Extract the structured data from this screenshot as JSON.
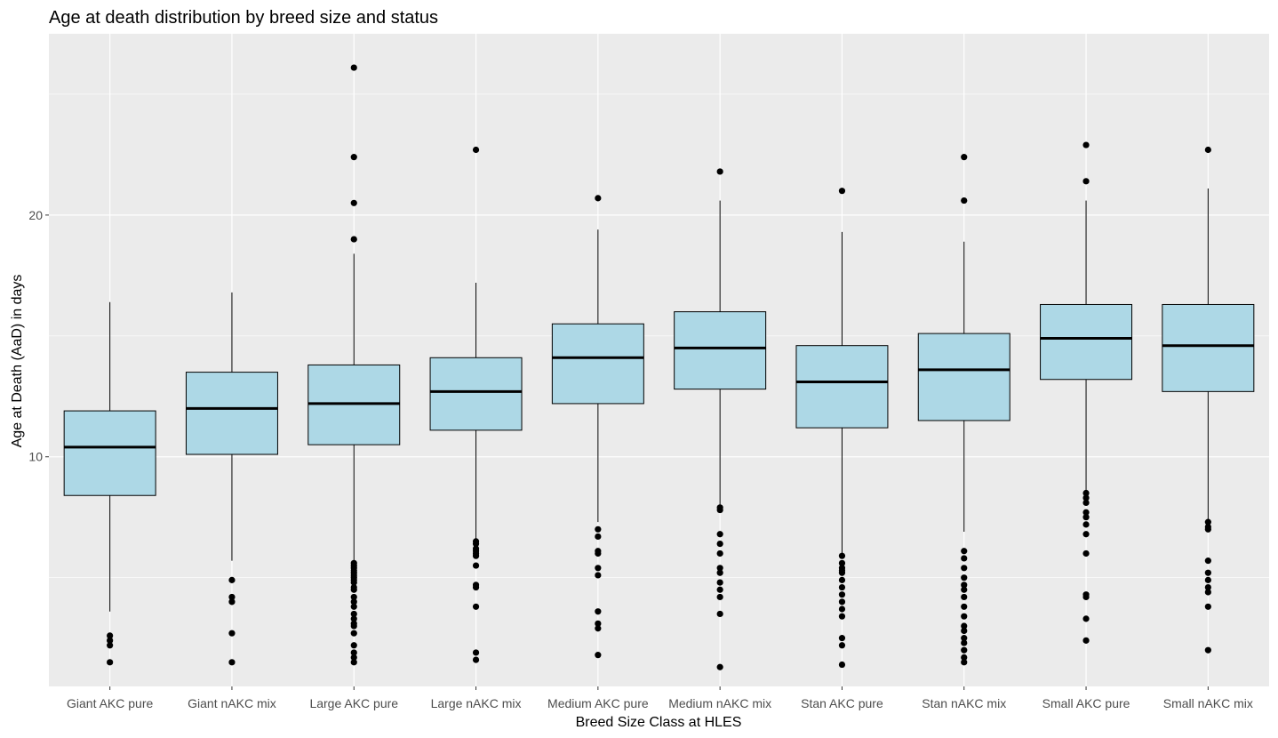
{
  "chart_data": {
    "type": "boxplot",
    "title": "Age at death distribution by breed size and status",
    "xlabel": "Breed Size Class at HLES",
    "ylabel": "Age at Death (AaD) in days",
    "ylim": [
      0.5,
      27.5
    ],
    "yticks": [
      10,
      20
    ],
    "grid": true,
    "box_fill": "#ADD8E6",
    "panel_background": "#EBEBEB",
    "categories": [
      "Giant AKC pure",
      "Giant nAKC mix",
      "Large AKC pure",
      "Large nAKC mix",
      "Medium AKC pure",
      "Medium nAKC mix",
      "Stan AKC pure",
      "Stan nAKC mix",
      "Small AKC pure",
      "Small nAKC mix"
    ],
    "boxes": [
      {
        "lower_whisker": 3.6,
        "q1": 8.4,
        "median": 10.4,
        "q3": 11.9,
        "upper_whisker": 16.4,
        "outliers": [
          2.6,
          2.2,
          1.5,
          2.4
        ]
      },
      {
        "lower_whisker": 5.7,
        "q1": 10.1,
        "median": 12.0,
        "q3": 13.5,
        "upper_whisker": 16.8,
        "outliers": [
          4.9,
          4.2,
          4.0,
          2.7,
          1.5
        ]
      },
      {
        "lower_whisker": 5.7,
        "q1": 10.5,
        "median": 12.2,
        "q3": 13.8,
        "upper_whisker": 18.4,
        "outliers": [
          26.1,
          22.4,
          20.5,
          19.0,
          5.6,
          5.5,
          5.4,
          5.3,
          5.2,
          5.1,
          5.0,
          4.9,
          4.8,
          4.6,
          4.5,
          4.2,
          4.0,
          3.8,
          3.5,
          3.3,
          3.1,
          3.0,
          2.7,
          2.2,
          1.9,
          1.7,
          1.5
        ]
      },
      {
        "lower_whisker": 6.6,
        "q1": 11.1,
        "median": 12.7,
        "q3": 14.1,
        "upper_whisker": 17.2,
        "outliers": [
          22.7,
          6.5,
          6.4,
          6.2,
          6.1,
          6.0,
          5.9,
          5.5,
          4.7,
          4.6,
          3.8,
          1.9,
          1.6
        ]
      },
      {
        "lower_whisker": 7.3,
        "q1": 12.2,
        "median": 14.1,
        "q3": 15.5,
        "upper_whisker": 19.4,
        "outliers": [
          20.7,
          7.0,
          6.7,
          6.1,
          6.0,
          5.4,
          5.1,
          3.6,
          3.1,
          2.9,
          1.8
        ]
      },
      {
        "lower_whisker": 8.0,
        "q1": 12.8,
        "median": 14.5,
        "q3": 16.0,
        "upper_whisker": 20.6,
        "outliers": [
          21.8,
          7.9,
          7.8,
          6.8,
          6.4,
          6.0,
          5.4,
          5.2,
          4.8,
          4.5,
          4.2,
          3.5,
          1.3
        ]
      },
      {
        "lower_whisker": 6.0,
        "q1": 11.2,
        "median": 13.1,
        "q3": 14.6,
        "upper_whisker": 19.3,
        "outliers": [
          21.0,
          5.9,
          5.6,
          5.4,
          5.3,
          5.2,
          4.9,
          4.6,
          4.3,
          4.0,
          3.7,
          3.4,
          2.5,
          2.2,
          1.4
        ]
      },
      {
        "lower_whisker": 6.9,
        "q1": 11.5,
        "median": 13.6,
        "q3": 15.1,
        "upper_whisker": 18.9,
        "outliers": [
          22.4,
          20.6,
          6.1,
          5.8,
          5.4,
          5.0,
          4.7,
          4.5,
          4.2,
          3.8,
          3.4,
          3.0,
          2.8,
          2.5,
          2.3,
          2.0,
          1.7,
          1.5
        ]
      },
      {
        "lower_whisker": 8.6,
        "q1": 13.2,
        "median": 14.9,
        "q3": 16.3,
        "upper_whisker": 20.6,
        "outliers": [
          22.9,
          21.4,
          8.5,
          8.3,
          8.1,
          7.7,
          7.5,
          7.2,
          6.8,
          6.0,
          4.3,
          4.2,
          3.3,
          2.4
        ]
      },
      {
        "lower_whisker": 7.4,
        "q1": 12.7,
        "median": 14.6,
        "q3": 16.3,
        "upper_whisker": 21.1,
        "outliers": [
          22.7,
          7.3,
          7.1,
          7.0,
          5.7,
          5.2,
          4.9,
          4.6,
          4.4,
          3.8,
          2.0
        ]
      }
    ]
  }
}
